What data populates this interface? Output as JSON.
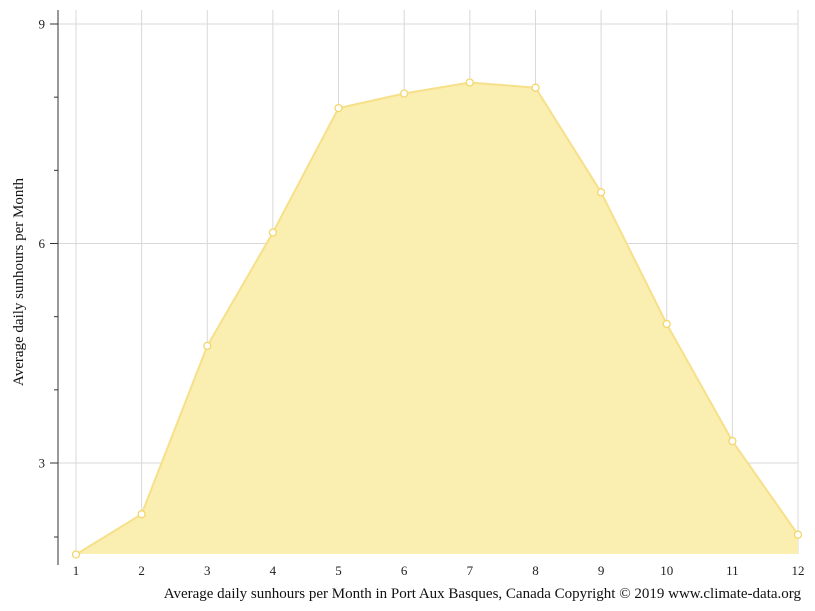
{
  "chart_data": {
    "type": "area",
    "x": [
      1,
      2,
      3,
      4,
      5,
      6,
      7,
      8,
      9,
      10,
      11,
      12
    ],
    "series": [
      {
        "values": [
          1.75,
          2.3,
          4.6,
          6.15,
          7.85,
          8.05,
          8.2,
          8.13,
          6.7,
          4.9,
          3.3,
          2.02
        ]
      }
    ],
    "xticks": [
      "1",
      "2",
      "3",
      "4",
      "5",
      "6",
      "7",
      "8",
      "9",
      "10",
      "11",
      "12"
    ],
    "yticks": [
      "3",
      "6",
      "9"
    ],
    "ylabel": "Average daily sunhours per Month",
    "caption": "Average daily sunhours per Month in Port Aux Basques, Canada Copyright © 2019 www.climate-data.org",
    "xlim": [
      1,
      12
    ],
    "ylim": [
      1.75,
      9.2
    ],
    "grid": true,
    "colors": {
      "fill": "#faeeb0",
      "line": "#f6e08a",
      "point_stroke": "#f2d76a",
      "grid": "#d8d8d8",
      "axis": "#333333"
    }
  }
}
